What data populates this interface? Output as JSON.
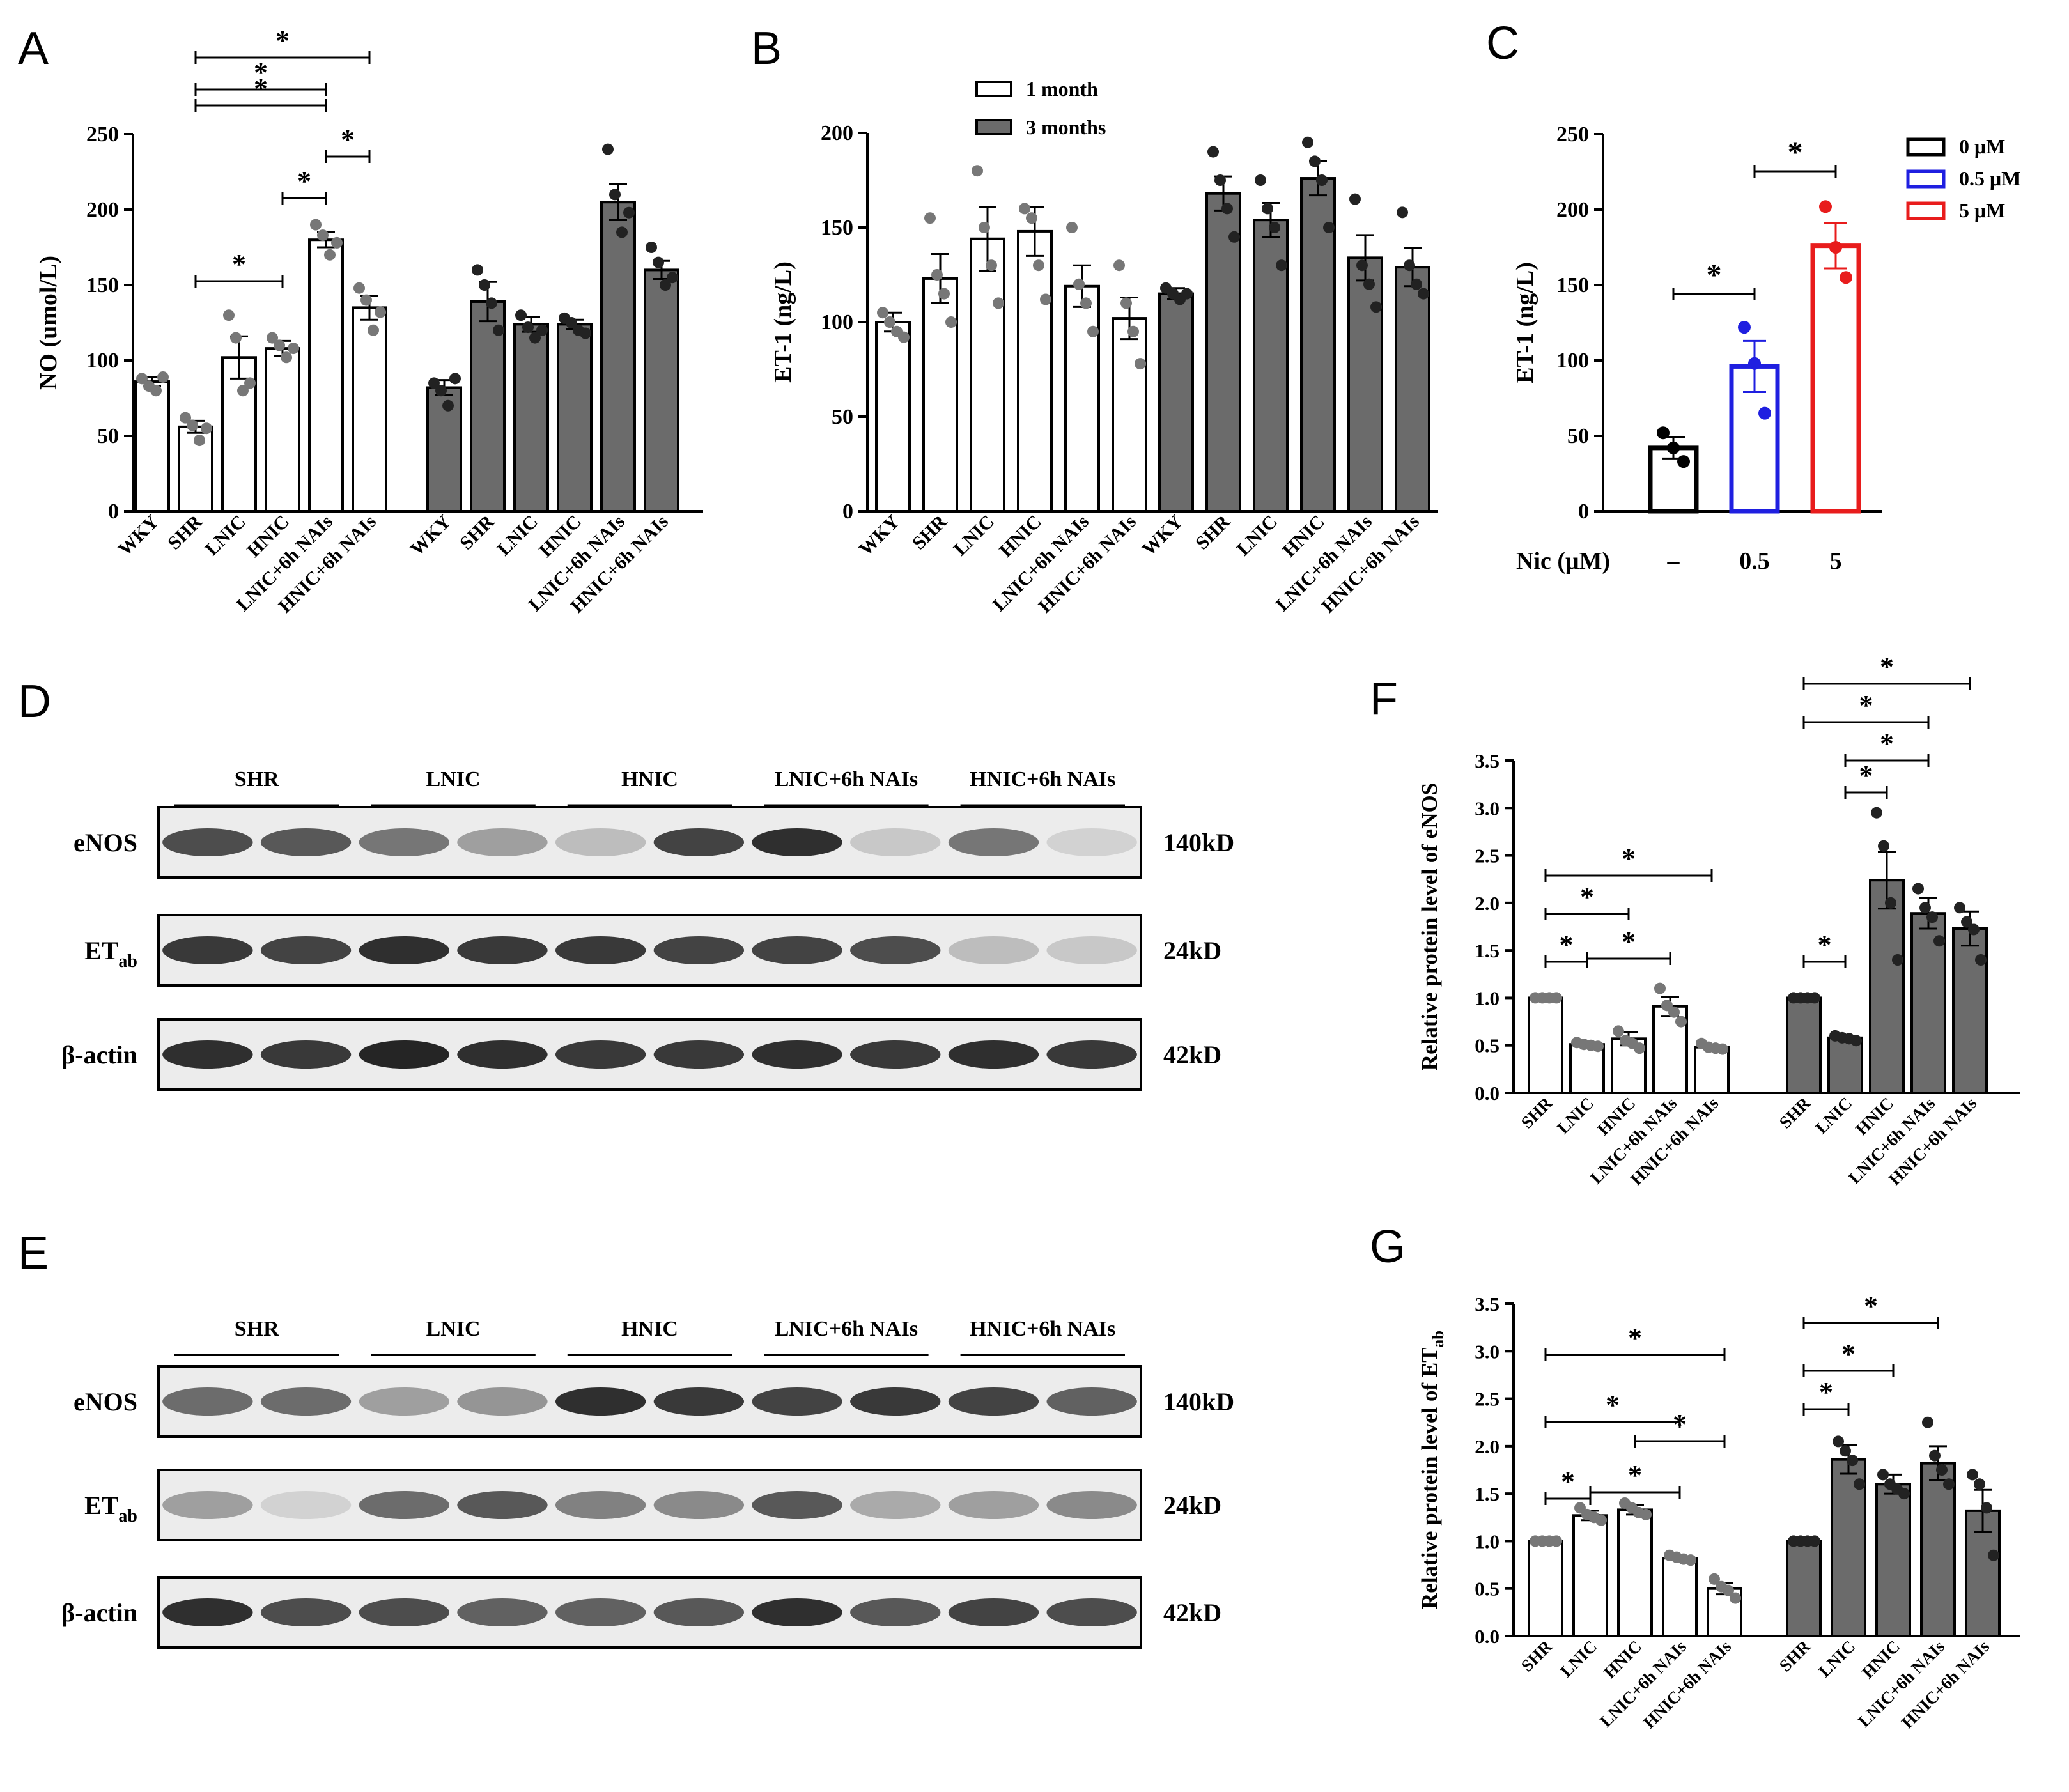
{
  "colors": {
    "white_bar": "#ffffff",
    "dark_bar": "#6b6b6b",
    "dot_light": "#777777",
    "dot_dark": "#222222",
    "axis": "#000000",
    "c_black": "#000000",
    "c_blue": "#1f1fe0",
    "c_red": "#e81c1c",
    "blot_bg": "#ececec"
  },
  "panels": {
    "A": "A",
    "B": "B",
    "C": "C",
    "D": "D",
    "E": "E",
    "F": "F",
    "G": "G"
  },
  "star": "*",
  "chart_data": [
    {
      "id": "A",
      "type": "bar",
      "ylabel": "NO (umol/L)",
      "ylim": [
        0,
        250
      ],
      "yticks": [
        0,
        50,
        100,
        150,
        200,
        250
      ],
      "categories": [
        "WKY",
        "SHR",
        "LNIC",
        "HNIC",
        "LNIC+6h NAIs",
        "HNIC+6h NAIs"
      ],
      "series": [
        {
          "values": [
            86,
            56,
            102,
            108,
            180,
            135
          ],
          "errors": [
            3,
            4,
            14,
            5,
            5,
            8
          ]
        },
        {
          "values": [
            82,
            139,
            124,
            124,
            205,
            160
          ],
          "errors": [
            5,
            13,
            5,
            3,
            12,
            6
          ]
        }
      ],
      "points": [
        [
          [
            88,
            83,
            80,
            89
          ],
          [
            62,
            57,
            47,
            55
          ],
          [
            130,
            115,
            80,
            85
          ],
          [
            115,
            110,
            102,
            108
          ],
          [
            190,
            183,
            170,
            178
          ],
          [
            148,
            140,
            120,
            132
          ]
        ],
        [
          [
            85,
            80,
            70,
            88
          ],
          [
            160,
            150,
            138,
            120
          ],
          [
            130,
            122,
            115,
            120
          ],
          [
            128,
            125,
            120,
            118
          ],
          [
            240,
            210,
            185,
            198
          ],
          [
            175,
            165,
            150,
            155
          ]
        ]
      ]
    },
    {
      "id": "B",
      "type": "bar",
      "ylabel": "ET-1 (ng/L)",
      "ylim": [
        0,
        200
      ],
      "yticks": [
        0,
        50,
        100,
        150,
        200
      ],
      "categories": [
        "WKY",
        "SHR",
        "LNIC",
        "HNIC",
        "LNIC+6h NAIs",
        "HNIC+6h NAIs"
      ],
      "legend": [
        "1 month",
        "3 months"
      ],
      "series": [
        {
          "name": "1 month",
          "values": [
            100,
            123,
            144,
            148,
            119,
            102
          ],
          "errors": [
            5,
            13,
            17,
            13,
            11,
            11
          ]
        },
        {
          "name": "3 months",
          "values": [
            115,
            168,
            154,
            176,
            134,
            129
          ],
          "errors": [
            3,
            9,
            9,
            9,
            12,
            10
          ]
        }
      ],
      "points": [
        [
          [
            105,
            100,
            95,
            92
          ],
          [
            155,
            125,
            115,
            100
          ],
          [
            180,
            150,
            130,
            110
          ],
          [
            160,
            155,
            130,
            112
          ],
          [
            150,
            120,
            110,
            95
          ],
          [
            130,
            110,
            95,
            78
          ]
        ],
        [
          [
            118,
            115,
            112,
            115
          ],
          [
            190,
            175,
            160,
            145
          ],
          [
            175,
            160,
            150,
            130
          ],
          [
            195,
            185,
            175,
            150
          ],
          [
            165,
            130,
            120,
            108
          ],
          [
            158,
            130,
            120,
            115
          ]
        ]
      ]
    },
    {
      "id": "C",
      "type": "bar",
      "ylabel": "ET-1 (ng/L)",
      "ylim": [
        0,
        250
      ],
      "yticks": [
        0,
        50,
        100,
        150,
        200,
        250
      ],
      "xaxis_title": "Nic  (μM)",
      "categories": [
        "–",
        "0.5",
        "5"
      ],
      "legend": [
        "0 μM",
        "0.5 μM",
        "5 μM"
      ],
      "values": [
        42,
        96,
        176
      ],
      "errors": [
        7,
        17,
        15
      ],
      "points": [
        [
          52,
          42,
          33
        ],
        [
          122,
          98,
          65
        ],
        [
          202,
          175,
          155
        ]
      ]
    },
    {
      "id": "F",
      "type": "bar",
      "ylabel": "Relative protein level of eNOS",
      "ylim": [
        0,
        3.5
      ],
      "yticks": [
        "0.0",
        "0.5",
        "1.0",
        "1.5",
        "2.0",
        "2.5",
        "3.0",
        "3.5"
      ],
      "categories": [
        "SHR",
        "LNIC",
        "HNIC",
        "LNIC+6h NAIs",
        "HNIC+6h NAIs"
      ],
      "series": [
        {
          "values": [
            1.0,
            0.51,
            0.57,
            0.91,
            0.48
          ],
          "errors": [
            0,
            0.02,
            0.07,
            0.1,
            0.02
          ]
        },
        {
          "values": [
            1.0,
            0.58,
            2.24,
            1.89,
            1.73
          ],
          "errors": [
            0,
            0.02,
            0.3,
            0.16,
            0.18
          ]
        }
      ],
      "points": [
        [
          [
            1.0,
            1.0,
            1.0,
            1.0
          ],
          [
            0.53,
            0.51,
            0.5,
            0.49
          ],
          [
            0.65,
            0.55,
            0.52,
            0.47
          ],
          [
            1.1,
            0.92,
            0.85,
            0.75
          ],
          [
            0.52,
            0.48,
            0.47,
            0.46
          ]
        ],
        [
          [
            1.0,
            1.0,
            1.0,
            1.0
          ],
          [
            0.6,
            0.58,
            0.57,
            0.55
          ],
          [
            2.95,
            2.6,
            2.0,
            1.4
          ],
          [
            2.15,
            1.95,
            1.85,
            1.6
          ],
          [
            1.95,
            1.8,
            1.72,
            1.4
          ]
        ]
      ]
    },
    {
      "id": "G",
      "type": "bar",
      "ylabel": "Relative protein level of ET",
      "ylabel_sub": "ab",
      "ylim": [
        0,
        3.5
      ],
      "yticks": [
        "0.0",
        "0.5",
        "1.0",
        "1.5",
        "2.0",
        "2.5",
        "3.0",
        "3.5"
      ],
      "categories": [
        "SHR",
        "LNIC",
        "HNIC",
        "LNIC+6h NAIs",
        "HNIC+6h NAIs"
      ],
      "series": [
        {
          "values": [
            1.0,
            1.27,
            1.33,
            0.82,
            0.5
          ],
          "errors": [
            0,
            0.05,
            0.05,
            0.02,
            0.06
          ]
        },
        {
          "values": [
            1.0,
            1.86,
            1.6,
            1.82,
            1.32
          ],
          "errors": [
            0,
            0.15,
            0.1,
            0.18,
            0.22
          ]
        }
      ],
      "points": [
        [
          [
            1.0,
            1.0,
            1.0,
            1.0
          ],
          [
            1.35,
            1.28,
            1.25,
            1.22
          ],
          [
            1.4,
            1.35,
            1.3,
            1.28
          ],
          [
            0.85,
            0.83,
            0.81,
            0.8
          ],
          [
            0.6,
            0.52,
            0.48,
            0.4
          ]
        ],
        [
          [
            1.0,
            1.0,
            1.0,
            1.0
          ],
          [
            2.05,
            1.95,
            1.85,
            1.6
          ],
          [
            1.7,
            1.6,
            1.55,
            1.5
          ],
          [
            2.25,
            1.9,
            1.75,
            1.6
          ],
          [
            1.7,
            1.6,
            1.35,
            0.85
          ]
        ]
      ]
    }
  ],
  "blots": [
    {
      "id": "D",
      "groups": [
        "SHR",
        "LNIC",
        "HNIC",
        "LNIC+6h NAIs",
        "HNIC+6h NAIs"
      ],
      "rows": [
        {
          "label": "eNOS",
          "label_sub": "",
          "size": "140kD",
          "intensity": [
            0.75,
            0.7,
            0.55,
            0.35,
            0.2,
            0.8,
            0.9,
            0.15,
            0.55,
            0.1
          ]
        },
        {
          "label": "ET",
          "label_sub": "ab",
          "size": "24kD",
          "intensity": [
            0.85,
            0.8,
            0.9,
            0.85,
            0.85,
            0.8,
            0.8,
            0.75,
            0.2,
            0.15
          ]
        },
        {
          "label": "β-actin",
          "label_sub": "",
          "size": "42kD",
          "intensity": [
            0.9,
            0.85,
            0.95,
            0.9,
            0.85,
            0.85,
            0.9,
            0.85,
            0.9,
            0.85
          ]
        }
      ]
    },
    {
      "id": "E",
      "groups": [
        "SHR",
        "LNIC",
        "HNIC",
        "LNIC+6h NAIs",
        "HNIC+6h NAIs"
      ],
      "rows": [
        {
          "label": "eNOS",
          "label_sub": "",
          "size": "140kD",
          "intensity": [
            0.6,
            0.6,
            0.35,
            0.4,
            0.9,
            0.85,
            0.8,
            0.85,
            0.8,
            0.65
          ]
        },
        {
          "label": "ET",
          "label_sub": "ab",
          "size": "24kD",
          "intensity": [
            0.35,
            0.1,
            0.6,
            0.7,
            0.5,
            0.45,
            0.7,
            0.3,
            0.35,
            0.45
          ]
        },
        {
          "label": "β-actin",
          "label_sub": "",
          "size": "42kD",
          "intensity": [
            0.9,
            0.75,
            0.75,
            0.65,
            0.65,
            0.7,
            0.9,
            0.7,
            0.8,
            0.75
          ]
        }
      ]
    }
  ]
}
